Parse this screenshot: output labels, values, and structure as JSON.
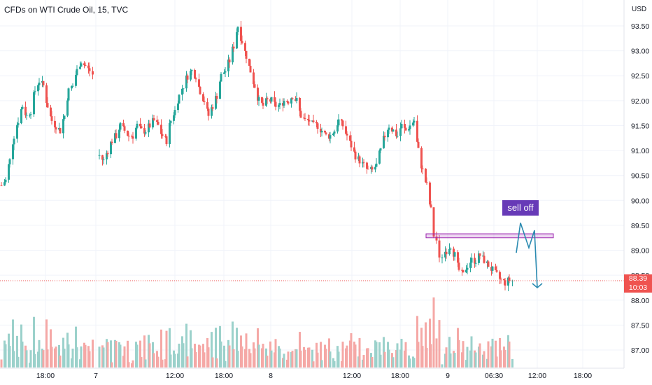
{
  "header": {
    "title": "CFDs on WTI Crude Oil, 15, TVC"
  },
  "chart_data": {
    "type": "candlestick",
    "title": "CFDs on WTI Crude Oil, 15, TVC",
    "y_unit": "USD",
    "ylim": [
      86.7,
      94.0
    ],
    "y_ticks": [
      "93.50",
      "93.00",
      "92.50",
      "92.00",
      "91.50",
      "91.00",
      "90.50",
      "90.00",
      "89.50",
      "89.00",
      "88.50",
      "88.00",
      "87.50",
      "87.00"
    ],
    "y_tick_values": [
      93.5,
      93.0,
      92.5,
      92.0,
      91.5,
      91.0,
      90.5,
      90.0,
      89.5,
      89.0,
      88.5,
      88.0,
      87.5,
      87.0
    ],
    "x_ticks": [
      "18:00",
      "7",
      "12:00",
      "18:00",
      "8",
      "12:00",
      "18:00",
      "9",
      "06:30",
      "12:00",
      "18:00"
    ],
    "current_price": "88.39",
    "countdown": "10:03",
    "colors": {
      "up": "#26a69a",
      "down": "#ef5350",
      "up_vol": "#9bd1cb",
      "down_vol": "#f5a8a6",
      "grid": "#f0f3fa",
      "annotation": "#9c27b0",
      "arrow": "#2a8ab0",
      "label_bg": "#673ab7"
    },
    "price_path": [
      [
        0,
        90.3
      ],
      [
        6,
        90.4
      ],
      [
        12,
        90.8
      ],
      [
        18,
        91.3
      ],
      [
        24,
        91.6
      ],
      [
        30,
        91.9
      ],
      [
        36,
        91.7
      ],
      [
        42,
        91.8
      ],
      [
        48,
        92.2
      ],
      [
        54,
        92.4
      ],
      [
        60,
        92.3
      ],
      [
        66,
        91.9
      ],
      [
        72,
        91.6
      ],
      [
        78,
        91.5
      ],
      [
        84,
        91.4
      ],
      [
        90,
        91.7
      ],
      [
        96,
        92.2
      ],
      [
        102,
        92.3
      ],
      [
        108,
        92.6
      ],
      [
        114,
        92.8
      ],
      [
        120,
        92.7
      ],
      [
        126,
        92.6
      ],
      [
        132,
        92.5
      ],
      [
        140,
        90.9
      ],
      [
        146,
        90.8
      ],
      [
        152,
        91.0
      ],
      [
        158,
        91.2
      ],
      [
        164,
        91.3
      ],
      [
        170,
        91.5
      ],
      [
        176,
        91.4
      ],
      [
        182,
        91.3
      ],
      [
        188,
        91.3
      ],
      [
        194,
        91.5
      ],
      [
        200,
        91.4
      ],
      [
        206,
        91.4
      ],
      [
        212,
        91.5
      ],
      [
        218,
        91.6
      ],
      [
        224,
        91.5
      ],
      [
        230,
        91.3
      ],
      [
        236,
        91.2
      ],
      [
        242,
        91.6
      ],
      [
        248,
        91.8
      ],
      [
        254,
        92.1
      ],
      [
        260,
        92.3
      ],
      [
        266,
        92.5
      ],
      [
        272,
        92.6
      ],
      [
        278,
        92.5
      ],
      [
        284,
        92.2
      ],
      [
        290,
        92.0
      ],
      [
        296,
        91.7
      ],
      [
        302,
        91.9
      ],
      [
        308,
        92.1
      ],
      [
        314,
        92.5
      ],
      [
        320,
        92.6
      ],
      [
        326,
        92.8
      ],
      [
        332,
        93.1
      ],
      [
        338,
        93.5
      ],
      [
        344,
        93.2
      ],
      [
        350,
        92.9
      ],
      [
        356,
        92.6
      ],
      [
        362,
        92.3
      ],
      [
        368,
        92.0
      ],
      [
        374,
        91.9
      ],
      [
        380,
        92.0
      ],
      [
        386,
        92.0
      ],
      [
        392,
        91.9
      ],
      [
        398,
        91.9
      ],
      [
        404,
        92.0
      ],
      [
        410,
        92.0
      ],
      [
        416,
        92.1
      ],
      [
        422,
        92.0
      ],
      [
        428,
        91.7
      ],
      [
        434,
        91.6
      ],
      [
        440,
        91.6
      ],
      [
        446,
        91.5
      ],
      [
        452,
        91.5
      ],
      [
        458,
        91.4
      ],
      [
        464,
        91.3
      ],
      [
        470,
        91.3
      ],
      [
        476,
        91.4
      ],
      [
        482,
        91.6
      ],
      [
        488,
        91.5
      ],
      [
        494,
        91.3
      ],
      [
        500,
        91.1
      ],
      [
        506,
        90.9
      ],
      [
        512,
        90.8
      ],
      [
        518,
        90.7
      ],
      [
        524,
        90.6
      ],
      [
        530,
        90.6
      ],
      [
        536,
        90.7
      ],
      [
        542,
        91.0
      ],
      [
        548,
        91.3
      ],
      [
        554,
        91.5
      ],
      [
        560,
        91.4
      ],
      [
        566,
        91.3
      ],
      [
        572,
        91.5
      ],
      [
        578,
        91.4
      ],
      [
        584,
        91.5
      ],
      [
        590,
        91.6
      ],
      [
        596,
        91.0
      ],
      [
        602,
        90.6
      ],
      [
        608,
        90.3
      ],
      [
        614,
        89.8
      ],
      [
        618,
        89.3
      ],
      [
        622,
        89.2
      ],
      [
        626,
        88.8
      ],
      [
        630,
        88.9
      ],
      [
        636,
        89.0
      ],
      [
        642,
        89.1
      ],
      [
        648,
        88.9
      ],
      [
        654,
        88.6
      ],
      [
        660,
        88.5
      ],
      [
        666,
        88.7
      ],
      [
        672,
        88.8
      ],
      [
        678,
        88.8
      ],
      [
        684,
        88.9
      ],
      [
        690,
        88.8
      ],
      [
        696,
        88.7
      ],
      [
        702,
        88.6
      ],
      [
        708,
        88.5
      ],
      [
        714,
        88.4
      ],
      [
        720,
        88.35
      ],
      [
        726,
        88.4
      ],
      [
        732,
        88.39
      ]
    ],
    "annotations": {
      "zone_low": 89.25,
      "zone_high": 89.33,
      "label": "sell off",
      "projection": [
        [
          738,
          88.95
        ],
        [
          744,
          89.55
        ],
        [
          756,
          89.05
        ],
        [
          764,
          89.4
        ],
        [
          768,
          88.25
        ]
      ]
    }
  }
}
